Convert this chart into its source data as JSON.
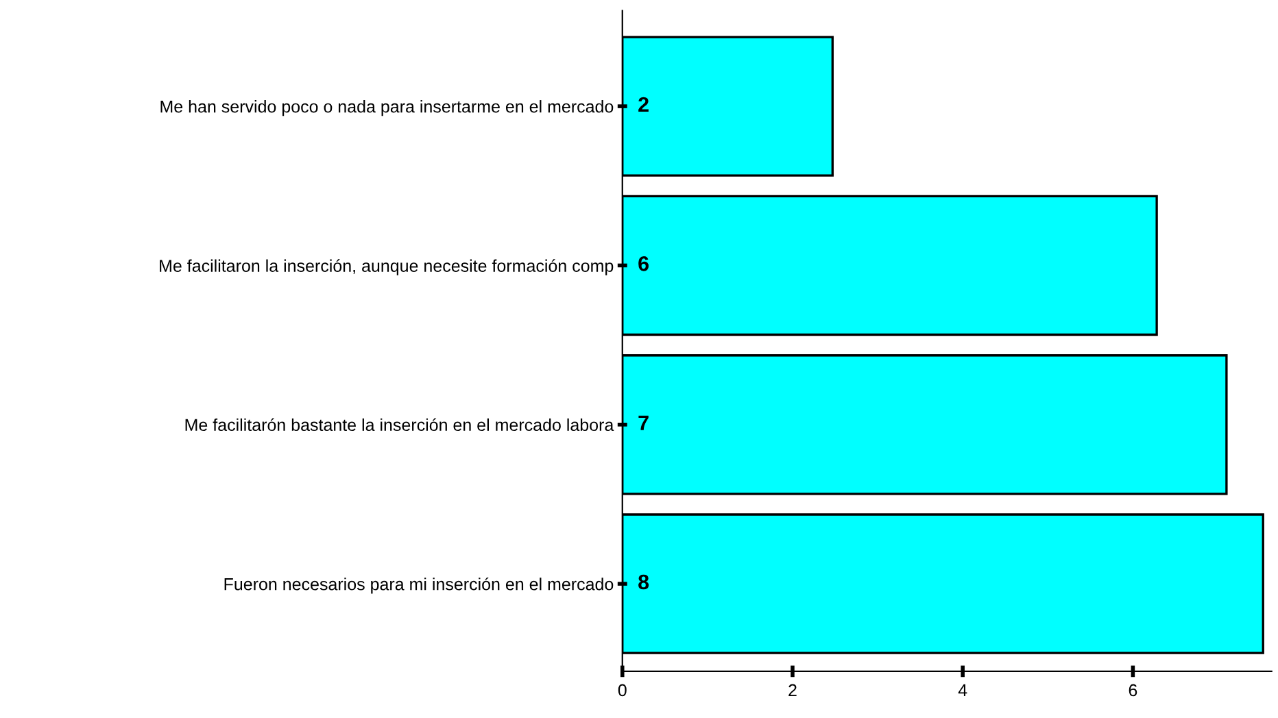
{
  "chart_data": {
    "type": "bar",
    "orientation": "horizontal",
    "categories": [
      "Me han servido poco o nada para insertarme en el mercado",
      "Me facilitaron la inserción, aunque necesite formación comp",
      "Me facilitarón bastante la inserción en el mercado labora",
      "Fueron necesarios para mi inserción en el mercado"
    ],
    "values": [
      2.47,
      6.28,
      7.1,
      7.53
    ],
    "value_labels": [
      "2",
      "6",
      "7",
      "8"
    ],
    "color": "#00ffff",
    "xlim": [
      0,
      7.63
    ],
    "xticks": [
      0,
      2,
      4,
      6
    ],
    "grid": false
  }
}
